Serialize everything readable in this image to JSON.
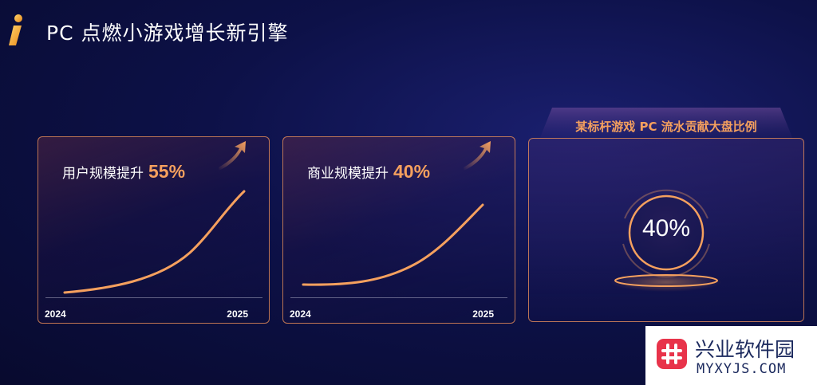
{
  "header": {
    "title": "PC 点燃小游戏增长新引擎"
  },
  "cards": [
    {
      "label": "用户规模提升",
      "value": "55%",
      "x_start": "2024",
      "x_end": "2025"
    },
    {
      "label": "商业规模提升",
      "value": "40%",
      "x_start": "2024",
      "x_end": "2025"
    }
  ],
  "highlight": {
    "heading": "某标杆游戏 PC 流水贡献大盘比例",
    "value": "40%"
  },
  "watermark": {
    "name": "兴业软件园",
    "domain": "MYXYJS.COM"
  },
  "colors": {
    "accent": "#f5a05e",
    "background": "#0d1148",
    "watermark_red": "#e8334a"
  }
}
